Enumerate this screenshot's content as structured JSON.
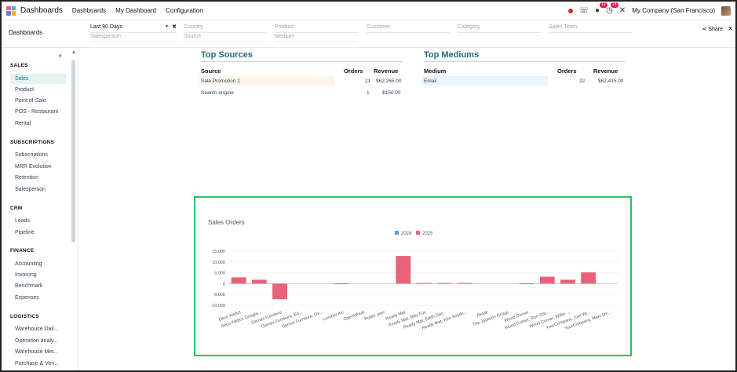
{
  "topnav": {
    "brand": "Dashboards",
    "links": [
      "Dashboards",
      "My Dashboard",
      "Configuration"
    ],
    "messages_count": "10",
    "activities_count": "21",
    "company": "My Company (San Francisco)"
  },
  "control": {
    "breadcrumb": "Dashboards",
    "filters": {
      "date": "Last 90 Days",
      "country": "Country",
      "product": "Product",
      "customer": "Customer",
      "category": "Category",
      "sales_team": "Sales Team",
      "salesperson": "Salesperson",
      "source": "Source",
      "medium": "Medium"
    },
    "share_label": "Share"
  },
  "sidebar": {
    "sections": [
      {
        "title": "SALES",
        "items": [
          "Sales",
          "Product",
          "Point of Sale",
          "POS - Restaurant",
          "Rental"
        ]
      },
      {
        "title": "SUBSCRIPTIONS",
        "items": [
          "Subscriptions",
          "MRR Evolution",
          "Retention",
          "Salesperson"
        ]
      },
      {
        "title": "CRM",
        "items": [
          "Leads",
          "Pipeline"
        ]
      },
      {
        "title": "FINANCE",
        "items": [
          "Accounting",
          "Invoicing",
          "Benchmark",
          "Expenses"
        ]
      },
      {
        "title": "LOGISTICS",
        "items": [
          "Warehouse Dail...",
          "Operation analy...",
          "Warehouse Met...",
          "Purchase & Ven..."
        ]
      }
    ],
    "active_item": "Sales"
  },
  "top_sources": {
    "title": "Top Sources",
    "headers": [
      "Source",
      "Orders",
      "Revenue"
    ],
    "rows": [
      {
        "name": "Sale Promotion 1",
        "orders": "21",
        "revenue": "$62,265.00"
      },
      {
        "name": "Search engine",
        "orders": "1",
        "revenue": "$150.00"
      }
    ]
  },
  "top_mediums": {
    "title": "Top Mediums",
    "headers": [
      "Medium",
      "Orders",
      "Revenue"
    ],
    "rows": [
      {
        "name": "Email",
        "orders": "22",
        "revenue": "$62,415.00"
      }
    ]
  },
  "chart_data": {
    "type": "bar",
    "title": "Sales Orders",
    "legend": [
      "2024",
      "2025"
    ],
    "legend_placement": "top-center",
    "colors": {
      "2024": "#4ea8de",
      "2025": "#e8627a"
    },
    "ylim": [
      -10000,
      15000
    ],
    "yticks": [
      "15,000",
      "10,000",
      "5,000",
      "0",
      "-5,000",
      "-10,000"
    ],
    "categories": [
      "Deco Addict",
      "Deco Addict, Dougla...",
      "Gemini Furniture",
      "Gemini Furniture, Ed...",
      "Gemini Furniture, Os...",
      "Lumber Inc",
      "OpenWood",
      "Public user",
      "Ready Mat",
      "Ready Mat, Billy Fox",
      "Ready Mat, Edith San...",
      "Ready Mat, Kim Snyde...",
      "Retail",
      "The Jackson Group",
      "Wood Corner",
      "Wood Corner, Ron Gib...",
      "Wood Corner, Willie ...",
      "YourCompany, Joel Wi...",
      "YourCompany, Marc De..."
    ],
    "series": [
      {
        "name": "2024",
        "values": [
          0,
          0,
          0,
          0,
          0,
          0,
          0,
          0,
          0,
          0,
          0,
          0,
          0,
          0,
          0,
          0,
          0,
          0,
          0
        ]
      },
      {
        "name": "2025",
        "values": [
          2900,
          1800,
          -7200,
          0,
          0,
          100,
          0,
          0,
          12800,
          300,
          300,
          300,
          0,
          0,
          100,
          3200,
          1800,
          5200,
          0
        ]
      }
    ]
  }
}
